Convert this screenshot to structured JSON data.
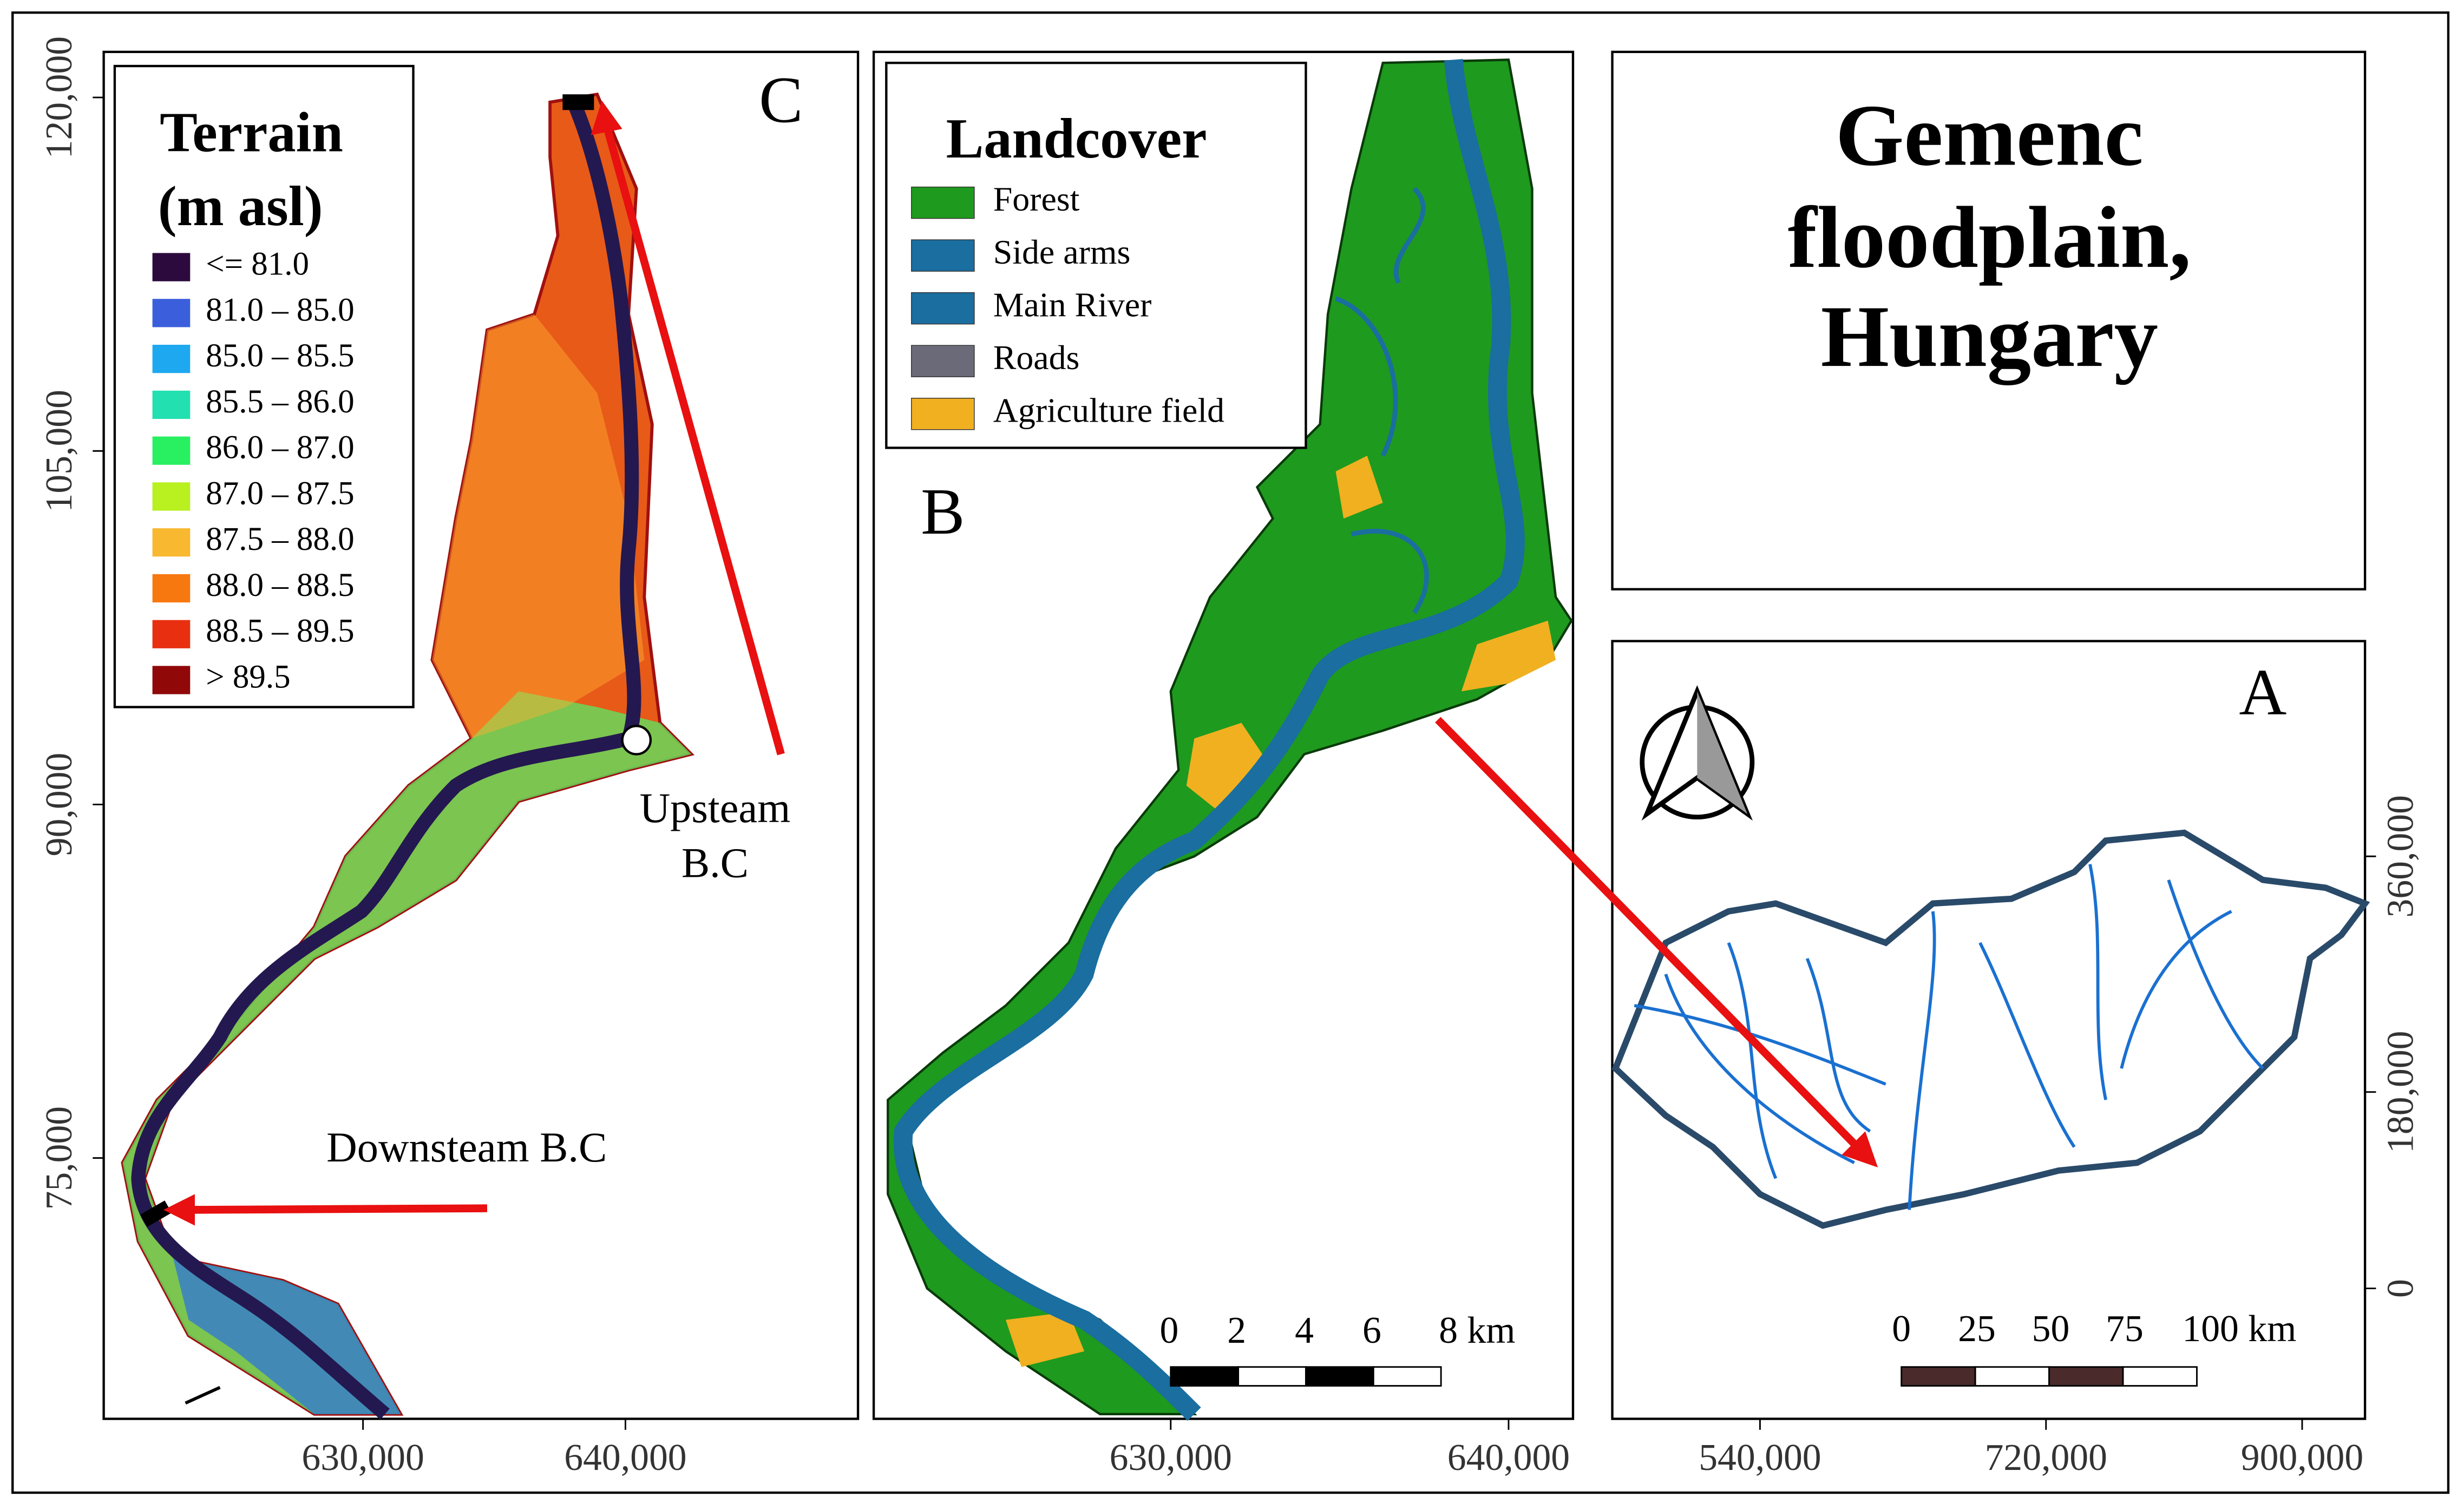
{
  "title": [
    "Gemenc",
    "floodplain,",
    "Hungary"
  ],
  "panel_c": {
    "label": "C",
    "legend_title": [
      "Terrain",
      "(m asl)"
    ],
    "legend": [
      {
        "label": "<= 81.0",
        "color": "#2d0a3d"
      },
      {
        "label": "81.0 – 85.0",
        "color": "#3b5fdc"
      },
      {
        "label": "85.0 – 85.5",
        "color": "#1ea8f0"
      },
      {
        "label": "85.5 – 86.0",
        "color": "#22e0b0"
      },
      {
        "label": "86.0 – 87.0",
        "color": "#28f060"
      },
      {
        "label": "87.0 – 87.5",
        "color": "#b8f020"
      },
      {
        "label": "87.5 – 88.0",
        "color": "#f8b830"
      },
      {
        "label": "88.0 – 88.5",
        "color": "#f87810"
      },
      {
        "label": "88.5 – 89.5",
        "color": "#e83010"
      },
      {
        "label": "> 89.5",
        "color": "#900808"
      }
    ],
    "annotations": [
      "Upsteam",
      "B.C",
      "Downsteam B.C"
    ],
    "y_ticks": [
      "120,000",
      "105,000",
      "90,000",
      "75,000"
    ],
    "x_ticks": [
      "630,000",
      "640,000"
    ]
  },
  "panel_b": {
    "label": "B",
    "legend_title": "Landcover",
    "legend": [
      {
        "label": "Forest",
        "color": "#1e9a1e"
      },
      {
        "label": "Side arms",
        "color": "#1a6ea0"
      },
      {
        "label": "Main River",
        "color": "#1a6ea0"
      },
      {
        "label": "Roads",
        "color": "#6a6a78"
      },
      {
        "label": "Agriculture field",
        "color": "#f0b020"
      }
    ],
    "scale_labels": [
      "0",
      "2",
      "4",
      "6",
      "8 km"
    ],
    "x_ticks": [
      "630,000",
      "640,000"
    ]
  },
  "panel_a": {
    "label": "A",
    "y_ticks": [
      "360,000",
      "180,000",
      "0"
    ],
    "x_ticks": [
      "540,000",
      "720,000",
      "900,000"
    ],
    "scale_labels": [
      "0",
      "25",
      "50",
      "75",
      "100 km"
    ]
  }
}
